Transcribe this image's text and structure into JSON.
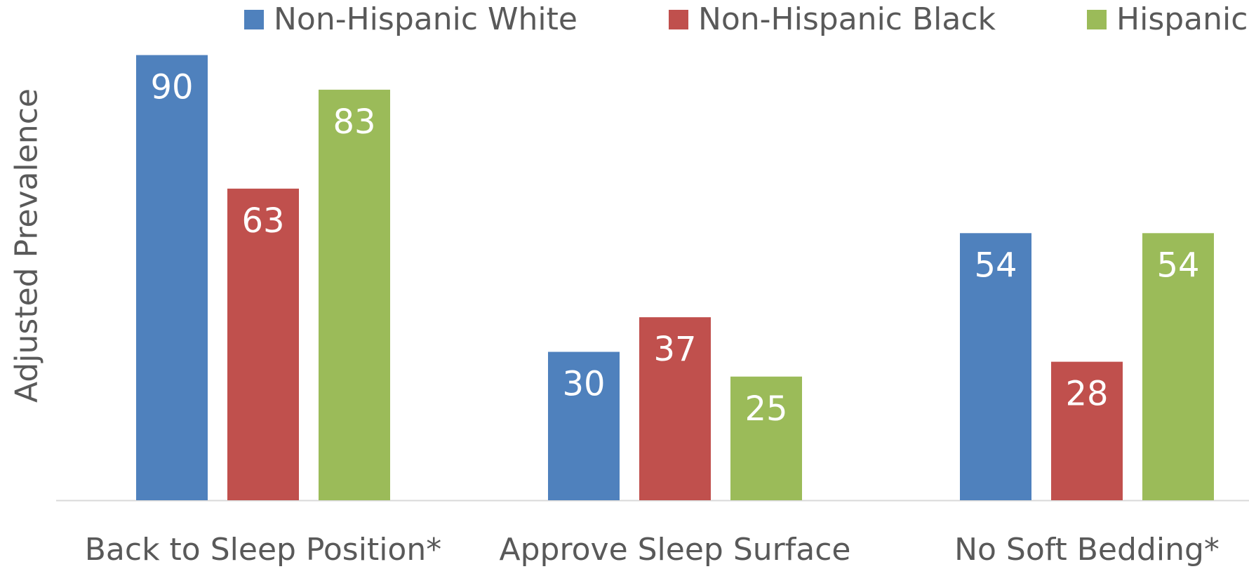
{
  "chart_data": {
    "type": "bar",
    "title": "",
    "xlabel": "",
    "ylabel": "Adjusted Prevalence",
    "ylim": [
      0,
      100
    ],
    "grid": false,
    "legend_position": "top",
    "categories": [
      "Back to Sleep Position*",
      "Approve Sleep Surface",
      "No Soft Bedding*"
    ],
    "series": [
      {
        "name": "Non-Hispanic White",
        "color": "#4F81BD",
        "values": [
          90,
          30,
          54
        ]
      },
      {
        "name": "Non-Hispanic Black",
        "color": "#C0504D",
        "values": [
          63,
          37,
          28
        ]
      },
      {
        "name": "Hispanic",
        "color": "#9BBB59",
        "values": [
          83,
          25,
          54
        ]
      }
    ],
    "data_label_color": "#FFFFFF",
    "axis_line_color": "#D9D9D9",
    "text_color": "#595959"
  }
}
